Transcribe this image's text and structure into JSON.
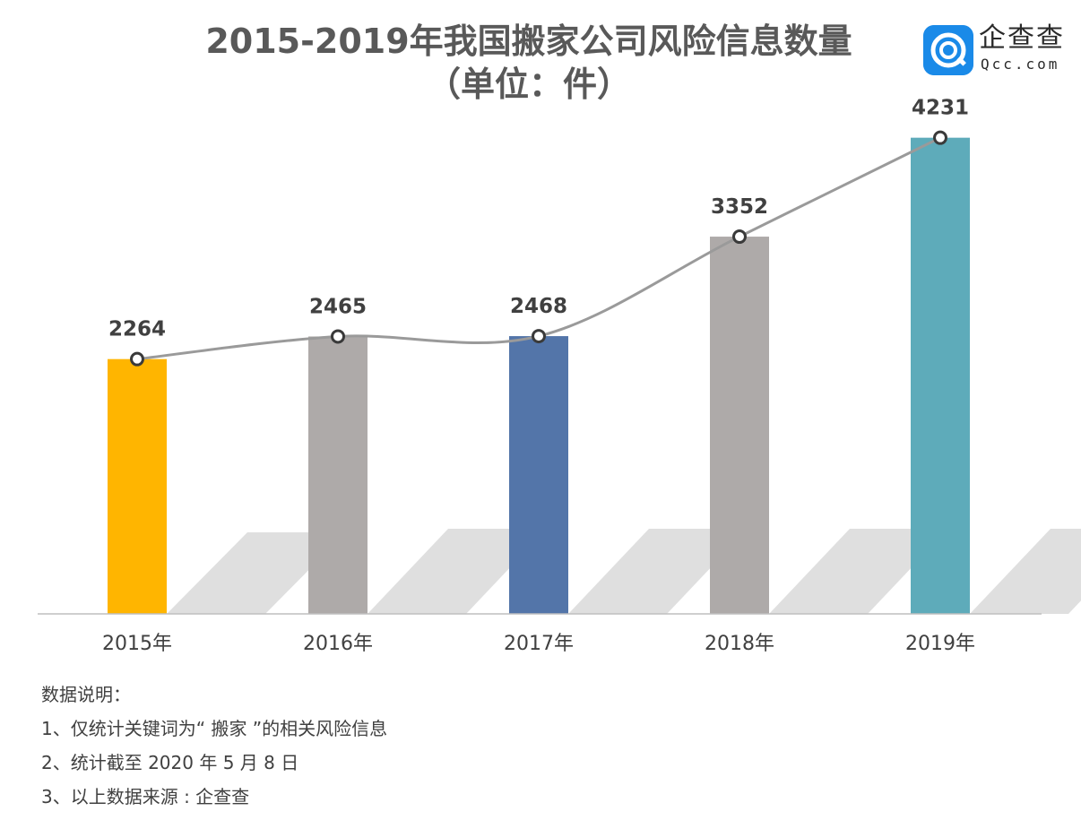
{
  "chart_data": {
    "type": "bar",
    "title": "2015-2019年我国搬家公司风险信息数量",
    "subtitle": "（单位：件）",
    "categories": [
      "2015年",
      "2016年",
      "2017年",
      "2018年",
      "2019年"
    ],
    "values": [
      2264,
      2465,
      2468,
      3352,
      4231
    ],
    "bar_colors": [
      "#ffb500",
      "#aeaaa9",
      "#5375a9",
      "#aeaaa9",
      "#5eabba"
    ],
    "overlay_line": true,
    "line_color": "#9a9a9a",
    "ylim": [
      0,
      4300
    ],
    "grid": false,
    "xlabel": "",
    "ylabel": ""
  },
  "logo": {
    "name": "企查查",
    "url": "Qcc.com",
    "color": "#1a8ae8",
    "icon": "qcc-logo-icon"
  },
  "notes": {
    "heading": "数据说明：",
    "items": [
      "1、仅统计关键词为“ 搬家 ”的相关风险信息",
      "2、统计截至 2020 年 5 月 8 日",
      "3、以上数据来源 : 企查查"
    ]
  }
}
